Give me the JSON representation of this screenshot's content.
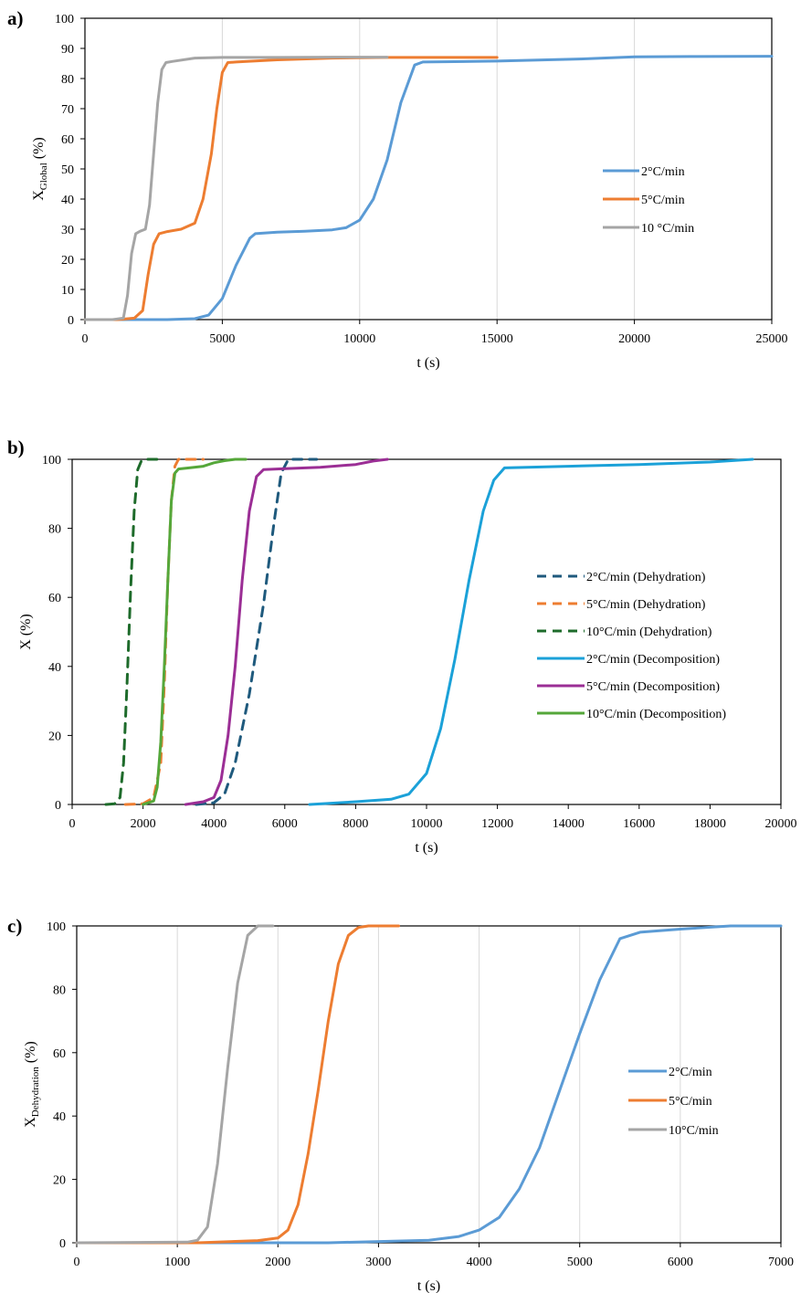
{
  "chart_data": [
    {
      "id": "a",
      "panel_label": "a)",
      "type": "line",
      "xlabel": "t (s)",
      "ylabel_main": "X",
      "ylabel_sub": "Global",
      "ylabel_tail": " (%)",
      "xlim": [
        0,
        25000
      ],
      "ylim": [
        0,
        100
      ],
      "xticks": [
        0,
        5000,
        10000,
        15000,
        20000,
        25000
      ],
      "yticks": [
        0,
        10,
        20,
        30,
        40,
        50,
        60,
        70,
        80,
        90,
        100
      ],
      "grid": "vertical",
      "legend_position": "right-middle",
      "series": [
        {
          "name": "2°C/min",
          "color": "#5b9bd5",
          "dash": "solid",
          "x": [
            0,
            3000,
            4000,
            4500,
            5000,
            5500,
            6000,
            6200,
            7000,
            8000,
            9000,
            9500,
            10000,
            10500,
            11000,
            11500,
            12000,
            12300,
            15000,
            18000,
            20000,
            22000,
            25000
          ],
          "y": [
            0,
            0,
            0.3,
            1.5,
            7,
            18,
            27,
            28.5,
            29,
            29.3,
            29.8,
            30.5,
            33,
            40,
            53,
            72,
            84.5,
            85.5,
            85.8,
            86.5,
            87.2,
            87.3,
            87.4
          ]
        },
        {
          "name": "5°C/min",
          "color": "#ed7d31",
          "dash": "solid",
          "x": [
            0,
            1200,
            1800,
            2100,
            2300,
            2500,
            2700,
            3000,
            3500,
            4000,
            4300,
            4600,
            4800,
            5000,
            5200,
            5500,
            7000,
            9000,
            11000,
            15000
          ],
          "y": [
            0,
            0,
            0.5,
            3,
            15,
            25,
            28.5,
            29.2,
            30,
            32,
            40,
            55,
            70,
            82,
            85.3,
            85.5,
            86.2,
            86.8,
            87,
            87
          ]
        },
        {
          "name": "10 °C/min",
          "color": "#a5a5a5",
          "dash": "solid",
          "x": [
            0,
            1000,
            1400,
            1550,
            1700,
            1850,
            2000,
            2200,
            2350,
            2500,
            2650,
            2800,
            2950,
            3200,
            4000,
            5000,
            7000,
            9000,
            11000
          ],
          "y": [
            0,
            0,
            0.5,
            8,
            22,
            28.5,
            29.3,
            30,
            38,
            55,
            72,
            83,
            85.3,
            85.7,
            86.8,
            87,
            87,
            87.1,
            87.1
          ]
        }
      ]
    },
    {
      "id": "b",
      "panel_label": "b)",
      "type": "line",
      "xlabel": "t (s)",
      "ylabel_main": "X (%)",
      "ylabel_sub": "",
      "ylabel_tail": "",
      "xlim": [
        0,
        20000
      ],
      "ylim": [
        0,
        100
      ],
      "xticks": [
        0,
        2000,
        4000,
        6000,
        8000,
        10000,
        12000,
        14000,
        16000,
        18000,
        20000
      ],
      "yticks": [
        0,
        20,
        40,
        60,
        80,
        100
      ],
      "grid": "none",
      "legend_position": "right-middle",
      "series": [
        {
          "name": "2°C/min (Dehydration)",
          "color": "#1f5a7d",
          "dash": "dashed",
          "x": [
            3500,
            4000,
            4300,
            4600,
            5000,
            5400,
            5700,
            5900,
            6100,
            6300,
            6900
          ],
          "y": [
            0,
            0.5,
            3,
            12,
            32,
            58,
            82,
            96,
            100,
            100,
            100
          ]
        },
        {
          "name": "5°C/min (Dehydration)",
          "color": "#ed7d31",
          "dash": "dashed",
          "x": [
            1500,
            2000,
            2300,
            2500,
            2600,
            2700,
            2800,
            2900,
            3000,
            3200,
            3700
          ],
          "y": [
            0,
            0.2,
            2,
            12,
            35,
            65,
            88,
            98,
            100,
            100,
            100
          ]
        },
        {
          "name": "10°C/min (Dehydration)",
          "color": "#1e6b2b",
          "dash": "dashed",
          "x": [
            950,
            1200,
            1350,
            1450,
            1550,
            1650,
            1750,
            1850,
            1950,
            2100,
            2500
          ],
          "y": [
            0,
            0.2,
            2,
            12,
            35,
            62,
            85,
            97,
            99.5,
            100,
            100
          ]
        },
        {
          "name": "2°C/min (Decomposition)",
          "color": "#1ba1d8",
          "dash": "solid",
          "x": [
            6700,
            8000,
            9000,
            9500,
            10000,
            10400,
            10800,
            11200,
            11600,
            11900,
            12200,
            14000,
            16000,
            18000,
            19200
          ],
          "y": [
            0,
            0.8,
            1.5,
            3,
            9,
            22,
            42,
            65,
            85,
            94,
            97.5,
            98,
            98.5,
            99.2,
            100
          ]
        },
        {
          "name": "5°C/min (Decomposition)",
          "color": "#9b2e95",
          "dash": "solid",
          "x": [
            3200,
            3700,
            4000,
            4200,
            4400,
            4600,
            4800,
            5000,
            5200,
            5400,
            6000,
            7000,
            8000,
            8500,
            8900
          ],
          "y": [
            0,
            0.8,
            2,
            7,
            20,
            40,
            65,
            85,
            95,
            97,
            97.3,
            97.7,
            98.5,
            99.5,
            100
          ]
        },
        {
          "name": "10°C/min (Decomposition)",
          "color": "#55a73a",
          "dash": "solid",
          "x": [
            2000,
            2300,
            2400,
            2500,
            2600,
            2700,
            2800,
            2900,
            3000,
            3300,
            3700,
            4000,
            4300,
            4600,
            4900
          ],
          "y": [
            0,
            1,
            5,
            18,
            40,
            65,
            88,
            96,
            97.2,
            97.5,
            98,
            99,
            99.6,
            100,
            100
          ]
        }
      ]
    },
    {
      "id": "c",
      "panel_label": "c)",
      "type": "line",
      "xlabel": "t (s)",
      "ylabel_main": "X",
      "ylabel_sub": "Dehydration",
      "ylabel_tail": " (%)",
      "xlim": [
        0,
        7000
      ],
      "ylim": [
        0,
        100
      ],
      "xticks": [
        0,
        1000,
        2000,
        3000,
        4000,
        5000,
        6000,
        7000
      ],
      "yticks": [
        0,
        20,
        40,
        60,
        80,
        100
      ],
      "grid": "vertical",
      "legend_position": "right-middle",
      "series": [
        {
          "name": "2°C/min",
          "color": "#5b9bd5",
          "dash": "solid",
          "x": [
            0,
            2500,
            3500,
            3800,
            4000,
            4200,
            4400,
            4600,
            4800,
            5000,
            5200,
            5400,
            5600,
            6000,
            6500,
            7000
          ],
          "y": [
            0,
            0,
            0.8,
            2,
            4,
            8,
            17,
            30,
            48,
            66,
            83,
            96,
            98,
            99,
            100,
            100
          ]
        },
        {
          "name": "5°C/min",
          "color": "#ed7d31",
          "dash": "solid",
          "x": [
            0,
            1200,
            1800,
            2000,
            2100,
            2200,
            2300,
            2400,
            2500,
            2600,
            2700,
            2800,
            2900,
            3000,
            3200
          ],
          "y": [
            0,
            0,
            0.7,
            1.5,
            4,
            12,
            28,
            48,
            70,
            88,
            97,
            99.5,
            100,
            100,
            100
          ]
        },
        {
          "name": "10°C/min",
          "color": "#a5a5a5",
          "dash": "solid",
          "x": [
            0,
            1100,
            1200,
            1300,
            1400,
            1500,
            1600,
            1700,
            1800,
            1900,
            1950
          ],
          "y": [
            0,
            0.2,
            0.8,
            5,
            25,
            55,
            82,
            97,
            100,
            100,
            100
          ]
        }
      ]
    }
  ]
}
